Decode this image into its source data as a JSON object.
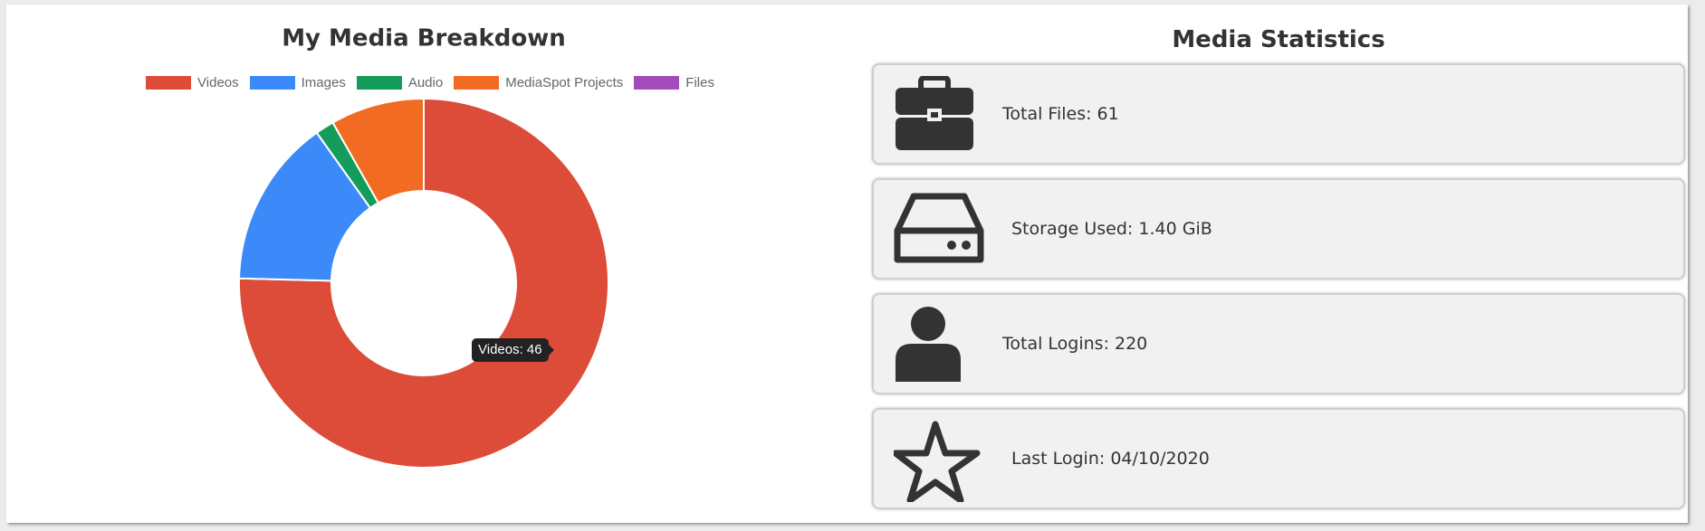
{
  "chart_data": {
    "type": "doughnut",
    "title": "My Media Breakdown",
    "categories": [
      "Videos",
      "Images",
      "Audio",
      "MediaSpot Projects",
      "Files"
    ],
    "values": [
      46,
      9,
      1,
      5,
      0
    ],
    "colors": [
      "#dd4b39",
      "#3c89fa",
      "#139c5a",
      "#f26b23",
      "#a24bbf"
    ],
    "tooltip": "Videos: 46"
  },
  "stats": {
    "title": "Media Statistics",
    "items": [
      "Total Files: 61",
      "Storage Used: 1.40 GiB",
      "Total Logins: 220",
      "Last Login: 04/10/2020"
    ]
  }
}
